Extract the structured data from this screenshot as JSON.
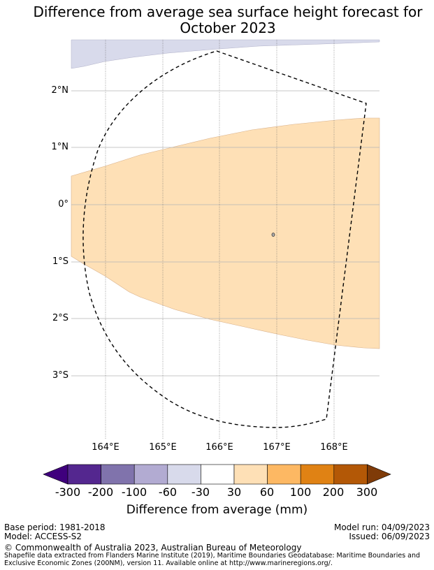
{
  "title_line1": "Difference from average sea surface height forecast for",
  "title_line2": "October 2023",
  "lat_labels": [
    "2°N",
    "1°N",
    "0°",
    "1°S",
    "2°S",
    "3°S"
  ],
  "lon_labels": [
    "164°E",
    "165°E",
    "166°E",
    "167°E",
    "168°E"
  ],
  "colorbar": {
    "title": "Difference from average (mm)",
    "ticks": [
      "-300",
      "-200",
      "-100",
      "-60",
      "-30",
      "30",
      "60",
      "100",
      "200",
      "300"
    ],
    "colors": [
      "#3f007d",
      "#54278f",
      "#8073ac",
      "#b2abd2",
      "#d8daeb",
      "#ffffff",
      "#fee0b6",
      "#fdb863",
      "#e08214",
      "#b35806",
      "#7f3b08"
    ]
  },
  "footer": {
    "base_period": "Base period: 1981-2018",
    "model": "Model: ACCESS-S2",
    "model_run": "Model run: 04/09/2023",
    "issued": "Issued: 06/09/2023",
    "copyright": "© Commonwealth of Australia 2023, Australian Bureau of Meteorology",
    "source_line1": "Shapefile data extracted from Flanders Marine Institute (2019), Maritime Boundaries Geodatabase: Maritime Boundaries and",
    "source_line2": "Exclusive Economic Zones (200NM), version 11. Available online at http://www.marineregions.org/."
  }
}
